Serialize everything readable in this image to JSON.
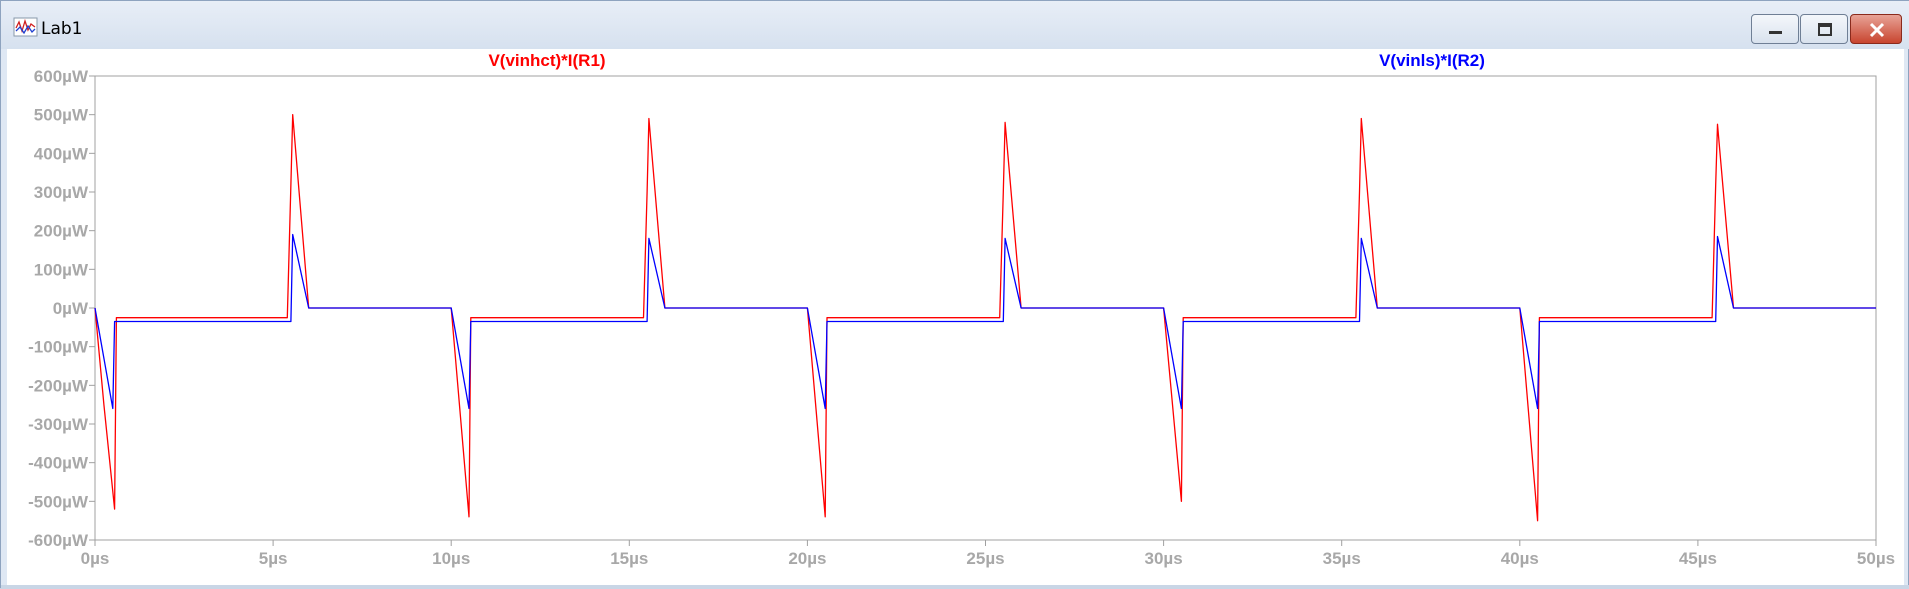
{
  "window": {
    "title": "Lab1",
    "buttons": {
      "minimize": "minimize",
      "maximize": "maximize",
      "close": "close"
    }
  },
  "chart_data": {
    "type": "line",
    "xlabel": "",
    "ylabel": "",
    "x_unit": "µs",
    "y_unit": "µW",
    "xlim": [
      0,
      50
    ],
    "ylim": [
      -600,
      600
    ],
    "xticks": [
      "0µs",
      "5µs",
      "10µs",
      "15µs",
      "20µs",
      "25µs",
      "30µs",
      "35µs",
      "40µs",
      "45µs",
      "50µs"
    ],
    "yticks": [
      "600µW",
      "500µW",
      "400µW",
      "300µW",
      "200µW",
      "100µW",
      "0µW",
      "-100µW",
      "-200µW",
      "-300µW",
      "-400µW",
      "-500µW",
      "-600µW"
    ],
    "grid": false,
    "series": [
      {
        "name": "V(vinhct)*I(R1)",
        "color": "#ff0000",
        "x": [
          0,
          0.25,
          0.55,
          0.6,
          5.4,
          5.5,
          5.55,
          6.0,
          10.0,
          10.5,
          10.55,
          15.4,
          15.5,
          15.55,
          16.0,
          20.0,
          20.5,
          20.55,
          25.4,
          25.5,
          25.55,
          26.0,
          30.0,
          30.5,
          30.55,
          35.4,
          35.5,
          35.55,
          36.0,
          40.0,
          40.5,
          40.55,
          45.4,
          45.5,
          45.55,
          46.0,
          50.0
        ],
        "y": [
          0,
          -250,
          -520,
          -25,
          -25,
          320,
          500,
          0,
          0,
          -540,
          -25,
          -25,
          300,
          490,
          0,
          0,
          -540,
          -25,
          -25,
          300,
          480,
          0,
          0,
          -500,
          -25,
          -25,
          300,
          490,
          0,
          0,
          -550,
          -25,
          -25,
          320,
          475,
          0,
          0
        ]
      },
      {
        "name": "V(vinls)*I(R2)",
        "color": "#0000ff",
        "x": [
          0,
          0.5,
          0.55,
          5.5,
          5.55,
          6.0,
          10.0,
          10.5,
          10.55,
          15.5,
          15.55,
          16.0,
          20.0,
          20.5,
          20.55,
          25.5,
          25.55,
          26.0,
          30.0,
          30.5,
          30.55,
          35.5,
          35.55,
          36.0,
          40.0,
          40.5,
          40.55,
          45.5,
          45.55,
          46.0,
          50.0
        ],
        "y": [
          0,
          -260,
          -35,
          -35,
          190,
          0,
          0,
          -260,
          -35,
          -35,
          180,
          0,
          0,
          -260,
          -35,
          -35,
          180,
          0,
          0,
          -260,
          -35,
          -35,
          180,
          0,
          0,
          -260,
          -35,
          -35,
          185,
          0,
          0
        ]
      }
    ]
  }
}
